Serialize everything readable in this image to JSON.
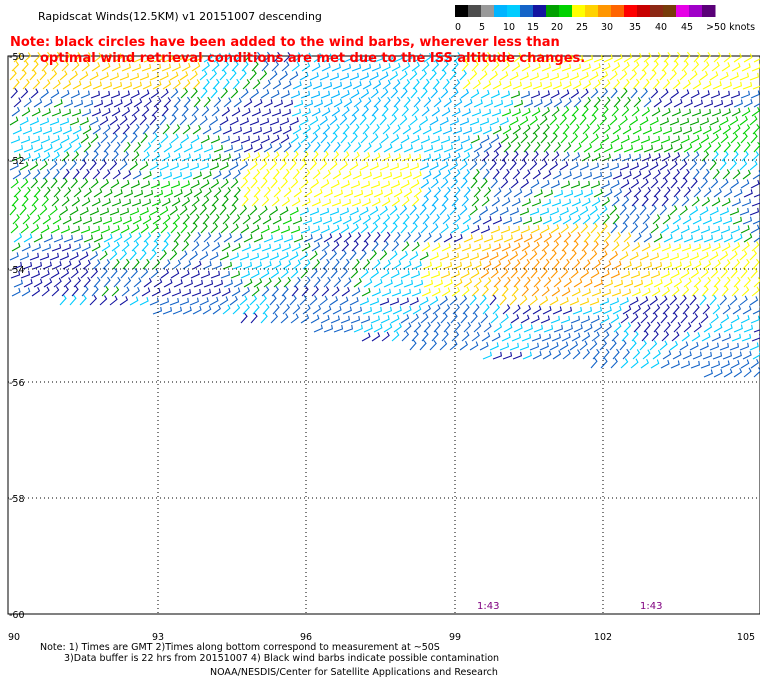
{
  "title": "Rapidscat Winds(12.5KM) v1 20151007 descending",
  "note": {
    "line1": "Note: black circles have been added to the wind barbs, wherever less than",
    "line2": "optimal wind retrieval conditions are met due to the ISS altitude changes."
  },
  "legend": {
    "labels": [
      "0",
      "5",
      "10",
      "15",
      "20",
      "25",
      "30",
      "35",
      "40",
      "45",
      ">50 knots"
    ],
    "colors": [
      "#000000",
      "#4d4d4d",
      "#999999",
      "#00b4ff",
      "#00ccff",
      "#1464c8",
      "#1414a0",
      "#00a000",
      "#00d200",
      "#ffff00",
      "#ffd200",
      "#ff9600",
      "#ff6400",
      "#ff0000",
      "#c80000",
      "#8c2814",
      "#783c0a",
      "#e600e6",
      "#a000c8",
      "#5a0078"
    ]
  },
  "map": {
    "lat_labels": [
      "-50",
      "-52",
      "-54",
      "-56",
      "-58",
      "-60"
    ],
    "lon_labels": [
      "90",
      "93",
      "96",
      "99",
      "102",
      "105"
    ],
    "time_labels": [
      "1:43",
      "1:43"
    ],
    "swath_description": "wind barbs"
  },
  "footer": {
    "line1": "Note: 1) Times are GMT 2)Times along bottom correspond to measurement at ~50S",
    "line2": "3)Data buffer is 22 hrs from 20151007 4) Black wind barbs indicate possible contamination",
    "line3": "NOAA/NESDIS/Center for Satellite Applications and Research"
  },
  "palette": {
    "red_note": "#ff0000",
    "time_label": "#800080",
    "grid": "#000000"
  }
}
